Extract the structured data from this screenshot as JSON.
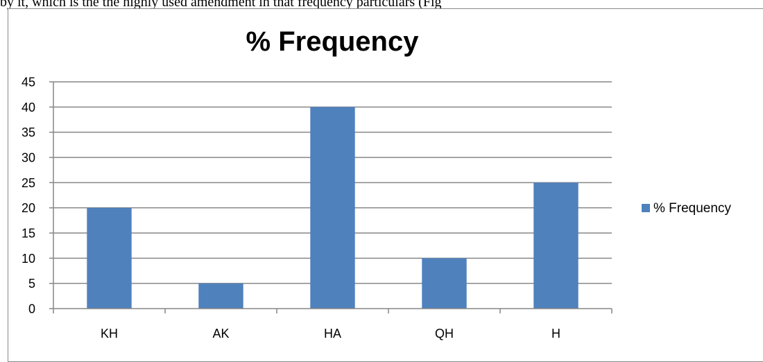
{
  "page": {
    "text_above_chart": "by it, which is the the highly used amendment in that frequency particulars (Fig"
  },
  "chart_data": {
    "type": "bar",
    "title": "% Frequency",
    "categories": [
      "KH",
      "AK",
      "HA",
      "QH",
      "H"
    ],
    "series": [
      {
        "name": "% Frequency",
        "values": [
          20,
          5,
          40,
          10,
          25
        ],
        "color": "#4f81bd"
      }
    ],
    "xlabel": "",
    "ylabel": "",
    "ylim": [
      0,
      45
    ],
    "yticks": [
      0,
      5,
      10,
      15,
      20,
      25,
      30,
      35,
      40,
      45
    ],
    "grid": "horizontal",
    "gridline_color": "#868686",
    "legend_position": "right"
  }
}
